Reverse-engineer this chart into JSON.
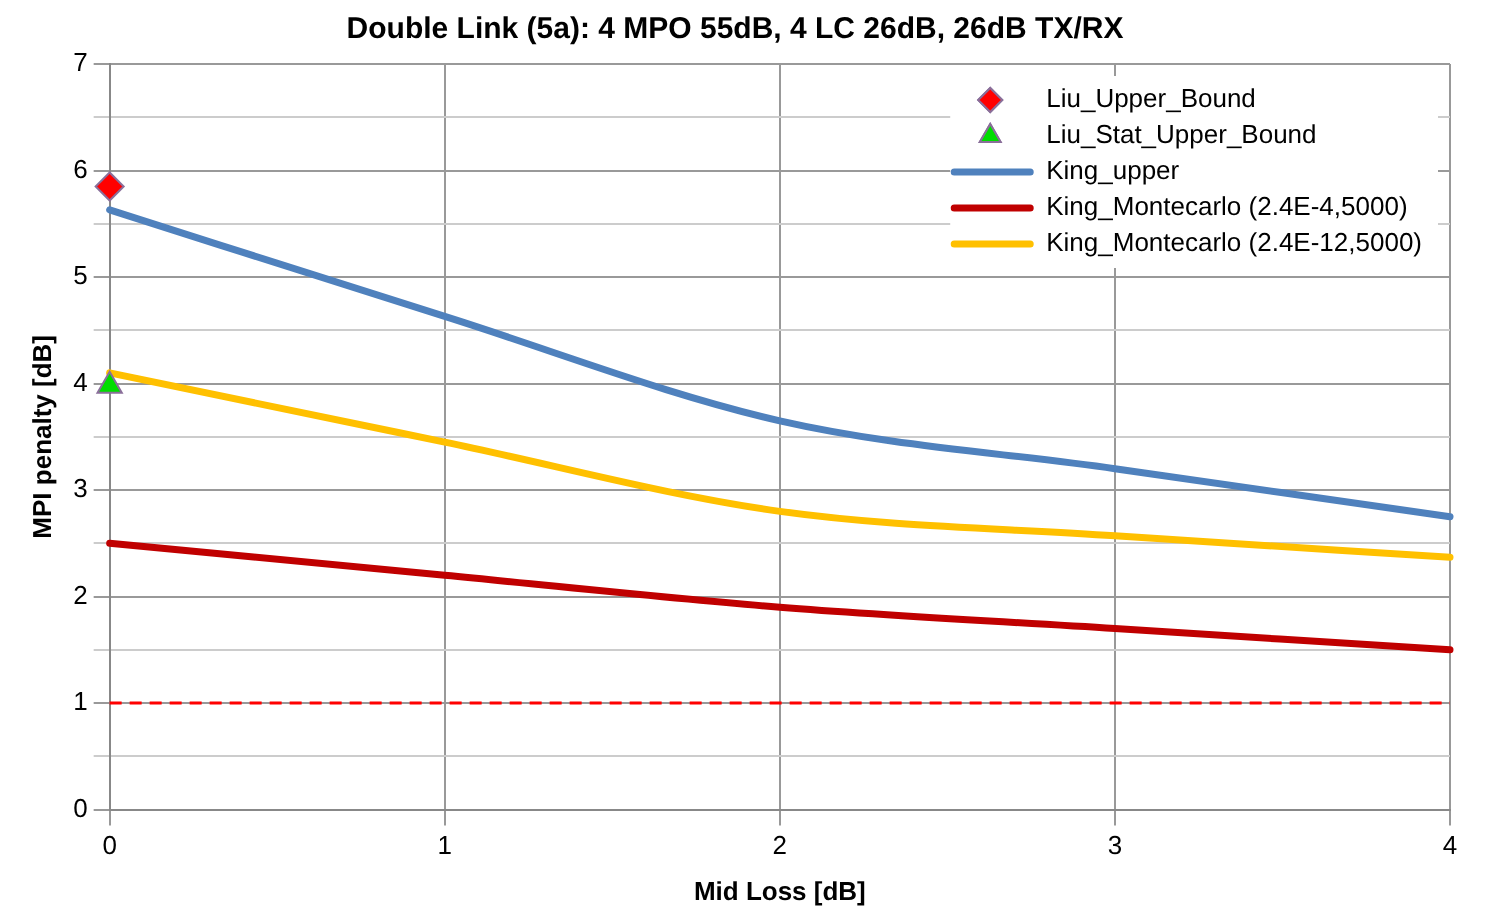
{
  "chart_data": {
    "type": "line",
    "title": "Double Link (5a): 4 MPO 55dB, 4 LC 26dB, 26dB TX/RX",
    "xlabel": "Mid Loss [dB]",
    "ylabel": "MPI penalty [dB]",
    "x": [
      0,
      1,
      2,
      3,
      4
    ],
    "series": [
      {
        "name": "Liu_Upper_Bound",
        "type": "scatter",
        "marker": "diamond",
        "color": "#ff0000",
        "x": [
          0
        ],
        "values": [
          5.85
        ]
      },
      {
        "name": "Liu_Stat_Upper_Bound",
        "type": "scatter",
        "marker": "triangle",
        "color": "#00dd00",
        "x": [
          0
        ],
        "values": [
          3.98
        ]
      },
      {
        "name": "King_upper",
        "color": "#4f81bd",
        "marker": "none",
        "values": [
          5.63,
          4.63,
          3.65,
          3.2,
          2.75
        ]
      },
      {
        "name": "King_Montecarlo (2.4E-4,5000)",
        "color": "#c00000",
        "marker": "none",
        "values": [
          2.5,
          2.2,
          1.9,
          1.7,
          1.5
        ]
      },
      {
        "name": "King_Montecarlo (2.4E-12,5000)",
        "color": "#ffc000",
        "marker": "none",
        "values": [
          4.1,
          3.45,
          2.8,
          2.57,
          2.37
        ]
      }
    ],
    "xlim": [
      0,
      4
    ],
    "xticks": [
      0,
      1,
      2,
      3,
      4
    ],
    "ylim": [
      0,
      7
    ],
    "yticks": [
      0,
      {
        "value": 0.5,
        "label": null
      },
      1,
      {
        "value": 1.5,
        "label": null
      },
      2,
      {
        "value": 2.5,
        "label": null
      },
      3,
      {
        "value": 3.5,
        "label": null
      },
      4,
      {
        "value": 4.5,
        "label": null
      },
      5,
      {
        "value": 5.5,
        "label": null
      },
      6,
      {
        "value": 6.5,
        "label": null
      },
      7
    ],
    "ref_lines": [
      {
        "axis": "y",
        "value": 1,
        "color": "#ff0000",
        "line_style": "dashed"
      }
    ],
    "grid": true,
    "legend": "top right"
  }
}
